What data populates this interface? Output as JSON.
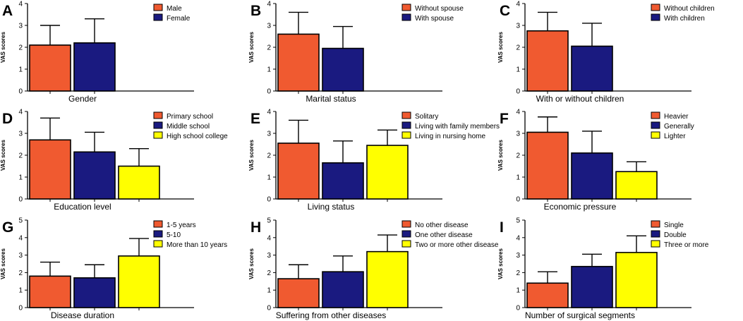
{
  "colors": {
    "orange": "#f05a30",
    "navy": "#1a1a80",
    "yellow": "#ffff00",
    "axis": "#000000"
  },
  "ylabel": "VAS scores",
  "chart_data": [
    {
      "type": "bar",
      "panel": "A",
      "xlabel": "Gender",
      "ylim": [
        0,
        4
      ],
      "yticks": [
        0,
        1,
        2,
        3,
        4
      ],
      "categories": [
        "Male",
        "Female"
      ],
      "values": [
        2.1,
        2.2
      ],
      "errors": [
        0.9,
        1.1
      ],
      "colors": [
        "#f05a30",
        "#1a1a80"
      ]
    },
    {
      "type": "bar",
      "panel": "B",
      "xlabel": "Marital status",
      "ylim": [
        0,
        4
      ],
      "yticks": [
        0,
        1,
        2,
        3,
        4
      ],
      "categories": [
        "Without spouse",
        "With spouse"
      ],
      "values": [
        2.6,
        1.95
      ],
      "errors": [
        1.0,
        1.0
      ],
      "colors": [
        "#f05a30",
        "#1a1a80"
      ]
    },
    {
      "type": "bar",
      "panel": "C",
      "xlabel": "With or without children",
      "ylim": [
        0,
        4
      ],
      "yticks": [
        0,
        1,
        2,
        3,
        4
      ],
      "categories": [
        "Without children",
        "With children"
      ],
      "values": [
        2.75,
        2.05
      ],
      "errors": [
        0.85,
        1.05
      ],
      "colors": [
        "#f05a30",
        "#1a1a80"
      ]
    },
    {
      "type": "bar",
      "panel": "D",
      "xlabel": "Education level",
      "ylim": [
        0,
        4
      ],
      "yticks": [
        0,
        1,
        2,
        3,
        4
      ],
      "categories": [
        "Primary school",
        "Middle school",
        "High school college"
      ],
      "values": [
        2.7,
        2.15,
        1.5
      ],
      "errors": [
        1.0,
        0.9,
        0.8
      ],
      "colors": [
        "#f05a30",
        "#1a1a80",
        "#ffff00"
      ]
    },
    {
      "type": "bar",
      "panel": "E",
      "xlabel": "Living status",
      "ylim": [
        0,
        4
      ],
      "yticks": [
        0,
        1,
        2,
        3,
        4
      ],
      "categories": [
        "Solitary",
        "Living with family members",
        "Living in nursing home"
      ],
      "values": [
        2.55,
        1.65,
        2.45
      ],
      "errors": [
        1.05,
        1.0,
        0.7
      ],
      "colors": [
        "#f05a30",
        "#1a1a80",
        "#ffff00"
      ]
    },
    {
      "type": "bar",
      "panel": "F",
      "xlabel": "Economic pressure",
      "ylim": [
        0,
        4
      ],
      "yticks": [
        0,
        1,
        2,
        3,
        4
      ],
      "categories": [
        "Heavier",
        "Generally",
        "Lighter"
      ],
      "values": [
        3.05,
        2.1,
        1.25
      ],
      "errors": [
        0.7,
        1.0,
        0.45
      ],
      "colors": [
        "#f05a30",
        "#1a1a80",
        "#ffff00"
      ]
    },
    {
      "type": "bar",
      "panel": "G",
      "xlabel": "Disease duration",
      "ylim": [
        0,
        5
      ],
      "yticks": [
        0,
        1,
        2,
        3,
        4,
        5
      ],
      "categories": [
        "1-5 years",
        "5-10",
        "More than 10 years"
      ],
      "values": [
        1.8,
        1.7,
        2.95
      ],
      "errors": [
        0.8,
        0.75,
        1.0
      ],
      "colors": [
        "#f05a30",
        "#1a1a80",
        "#ffff00"
      ]
    },
    {
      "type": "bar",
      "panel": "H",
      "xlabel": "Suffering from other diseases",
      "ylim": [
        0,
        5
      ],
      "yticks": [
        0,
        1,
        2,
        3,
        4,
        5
      ],
      "categories": [
        "No other disease",
        "One other disease",
        "Two or more other disease"
      ],
      "values": [
        1.65,
        2.05,
        3.2
      ],
      "errors": [
        0.8,
        0.9,
        0.95
      ],
      "colors": [
        "#f05a30",
        "#1a1a80",
        "#ffff00"
      ]
    },
    {
      "type": "bar",
      "panel": "I",
      "xlabel": "Number of surgical segments",
      "ylim": [
        0,
        5
      ],
      "yticks": [
        0,
        1,
        2,
        3,
        4,
        5
      ],
      "categories": [
        "Single",
        "Double",
        "Three or more"
      ],
      "values": [
        1.4,
        2.35,
        3.15
      ],
      "errors": [
        0.65,
        0.7,
        0.95
      ],
      "colors": [
        "#f05a30",
        "#1a1a80",
        "#ffff00"
      ]
    }
  ]
}
